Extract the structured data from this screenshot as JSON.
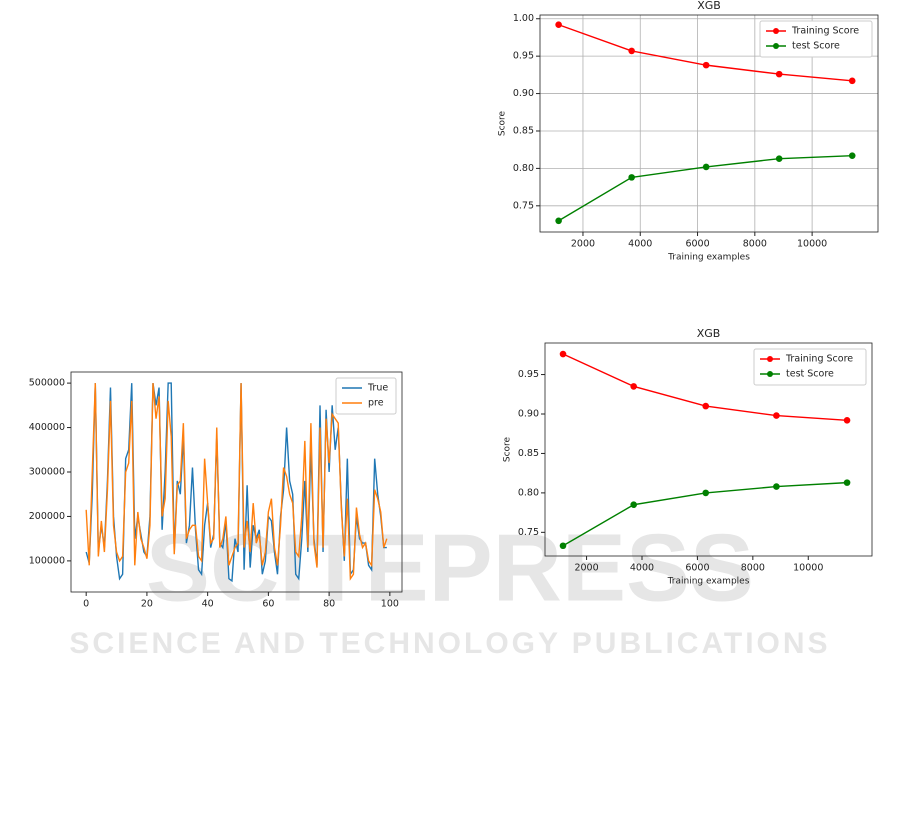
{
  "watermark": {
    "title": "SCITEPRESS",
    "subtitle": "SCIENCE AND TECHNOLOGY PUBLICATIONS"
  },
  "chart_data": [
    {
      "type": "line",
      "title": "XGB",
      "xlabel": "Training examples",
      "ylabel": "Score",
      "x": [
        1150,
        3700,
        6300,
        8850,
        11400
      ],
      "series": [
        {
          "name": "Training Score",
          "color": "#ff0000",
          "values": [
            0.992,
            0.957,
            0.938,
            0.926,
            0.917
          ]
        },
        {
          "name": "test Score",
          "color": "#008000",
          "values": [
            0.73,
            0.788,
            0.802,
            0.813,
            0.817
          ]
        }
      ],
      "markers": true,
      "grid": true,
      "legend": "upper right",
      "xlim": [
        500,
        12300
      ],
      "xticks": [
        2000,
        4000,
        6000,
        8000,
        10000
      ],
      "ylim": [
        0.715,
        1.005
      ],
      "yticks": [
        0.75,
        {
          "value": 0.8,
          "label": "0.80"
        },
        0.85,
        {
          "value": 0.9,
          "label": "0.90"
        },
        0.95,
        {
          "value": 1,
          "label": "1.00"
        }
      ]
    },
    {
      "type": "line",
      "title": "XGB",
      "xlabel": "Training examples",
      "ylabel": "Score",
      "x": [
        1150,
        3700,
        6300,
        8850,
        11400
      ],
      "series": [
        {
          "name": "Training Score",
          "color": "#ff0000",
          "values": [
            0.976,
            0.935,
            0.91,
            0.898,
            0.892
          ]
        },
        {
          "name": "test Score",
          "color": "#008000",
          "values": [
            0.733,
            0.785,
            0.8,
            0.808,
            0.813
          ]
        }
      ],
      "markers": true,
      "grid": false,
      "legend": "upper right",
      "xlim": [
        500,
        12300
      ],
      "xticks": [
        2000,
        4000,
        6000,
        8000,
        10000
      ],
      "ylim": [
        0.72,
        0.99
      ],
      "yticks": [
        0.75,
        {
          "value": 0.8,
          "label": "0.80"
        },
        0.85,
        {
          "value": 0.9,
          "label": "0.90"
        },
        0.95
      ]
    },
    {
      "type": "line",
      "x": [
        0,
        1,
        2,
        3,
        4,
        5,
        6,
        7,
        8,
        9,
        10,
        11,
        12,
        13,
        14,
        15,
        16,
        17,
        18,
        19,
        20,
        21,
        22,
        23,
        24,
        25,
        26,
        27,
        28,
        29,
        30,
        31,
        32,
        33,
        34,
        35,
        36,
        37,
        38,
        39,
        40,
        41,
        42,
        43,
        44,
        45,
        46,
        47,
        48,
        49,
        50,
        51,
        52,
        53,
        54,
        55,
        56,
        57,
        58,
        59,
        60,
        61,
        62,
        63,
        64,
        65,
        66,
        67,
        68,
        69,
        70,
        71,
        72,
        73,
        74,
        75,
        76,
        77,
        78,
        79,
        80,
        81,
        82,
        83,
        84,
        85,
        86,
        87,
        88,
        89,
        90,
        91,
        92,
        93,
        94,
        95,
        96,
        97,
        98,
        99
      ],
      "series": [
        {
          "name": "True",
          "color": "#1f77b4",
          "values": [
            120000,
            95000,
            250000,
            500000,
            120000,
            180000,
            130000,
            280000,
            490000,
            200000,
            110000,
            60000,
            70000,
            330000,
            350000,
            500000,
            150000,
            200000,
            160000,
            120000,
            110000,
            200000,
            500000,
            450000,
            490000,
            170000,
            300000,
            500000,
            500000,
            120000,
            280000,
            250000,
            380000,
            140000,
            180000,
            310000,
            170000,
            80000,
            70000,
            180000,
            230000,
            130000,
            160000,
            380000,
            140000,
            130000,
            190000,
            60000,
            55000,
            150000,
            120000,
            500000,
            80000,
            270000,
            85000,
            180000,
            150000,
            170000,
            70000,
            100000,
            200000,
            190000,
            120000,
            70000,
            200000,
            260000,
            400000,
            280000,
            250000,
            70000,
            60000,
            150000,
            280000,
            120000,
            350000,
            150000,
            90000,
            450000,
            120000,
            440000,
            300000,
            450000,
            350000,
            400000,
            230000,
            100000,
            330000,
            70000,
            80000,
            200000,
            150000,
            140000,
            140000,
            90000,
            80000,
            330000,
            250000,
            200000,
            130000,
            130000
          ]
        },
        {
          "name": "pre",
          "color": "#ff7f0e",
          "values": [
            215000,
            90000,
            300000,
            500000,
            110000,
            190000,
            120000,
            260000,
            460000,
            180000,
            120000,
            100000,
            110000,
            300000,
            320000,
            460000,
            90000,
            210000,
            150000,
            130000,
            105000,
            180000,
            500000,
            420000,
            470000,
            200000,
            240000,
            460000,
            380000,
            115000,
            270000,
            280000,
            410000,
            150000,
            170000,
            180000,
            180000,
            110000,
            100000,
            330000,
            230000,
            140000,
            150000,
            400000,
            130000,
            150000,
            200000,
            90000,
            110000,
            130000,
            140000,
            500000,
            130000,
            190000,
            120000,
            230000,
            140000,
            160000,
            90000,
            120000,
            210000,
            240000,
            130000,
            90000,
            180000,
            310000,
            290000,
            250000,
            230000,
            120000,
            110000,
            200000,
            370000,
            130000,
            410000,
            140000,
            85000,
            400000,
            130000,
            420000,
            320000,
            430000,
            420000,
            410000,
            220000,
            110000,
            240000,
            60000,
            70000,
            220000,
            160000,
            130000,
            140000,
            100000,
            90000,
            260000,
            240000,
            210000,
            130000,
            150000
          ]
        }
      ],
      "markers": false,
      "grid": false,
      "legend": "upper right",
      "xlim": [
        -5,
        104
      ],
      "xticks": [
        0,
        20,
        40,
        60,
        80,
        100
      ],
      "ylim": [
        30000,
        525000
      ],
      "yticks": [
        100000,
        200000,
        300000,
        400000,
        500000
      ]
    }
  ]
}
